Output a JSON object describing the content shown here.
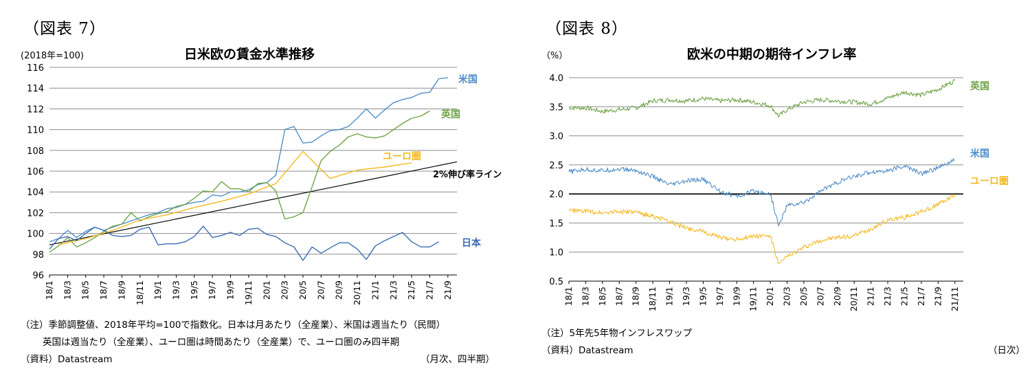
{
  "colors": {
    "us": "#4f8ec8",
    "uk": "#6ea347",
    "euro": "#f5b821",
    "japan": "#3a6db5",
    "trend": "#000000",
    "grid": "#8c8c8c"
  },
  "fig7": {
    "fig_label": "（図表 7）",
    "unit": "(2018年=100)",
    "title": "日米欧の賃金水準推移",
    "notes": [
      "（注）季節調整値、2018年平均=100で指数化。日本は月あたり（全産業）、米国は週当たり（民間）",
      "英国は週当たり（全産業）、ユーロ圏は時間あたり（全産業）で、ユーロ圏のみ四半期",
      "（資料）Datastream"
    ],
    "frequency": "（月次、四半期）",
    "chart_data": {
      "type": "line",
      "title": "日米欧の賃金水準推移",
      "ylabel": "(2018年=100)",
      "ylim": [
        96,
        116
      ],
      "yticks": [
        96,
        98,
        100,
        102,
        104,
        106,
        108,
        110,
        112,
        114,
        116
      ],
      "xticks": [
        "18/1",
        "18/3",
        "18/5",
        "18/7",
        "18/9",
        "18/11",
        "19/1",
        "19/3",
        "19/5",
        "19/7",
        "19/9",
        "19/11",
        "20/1",
        "20/3",
        "20/5",
        "20/7",
        "20/9",
        "20/11",
        "21/1",
        "21/3",
        "21/5",
        "21/7",
        "21/9"
      ],
      "grid": true,
      "series": [
        {
          "name": "米国",
          "key": "us",
          "months": [
            1,
            2,
            3,
            4,
            5,
            6,
            7,
            8,
            9,
            10,
            11,
            12,
            13,
            14,
            15,
            16,
            17,
            18,
            19,
            20,
            21,
            22,
            23,
            24,
            25,
            26,
            27,
            28,
            29,
            30,
            31,
            32,
            33,
            34,
            35,
            36,
            37,
            38,
            39,
            40,
            41,
            42,
            43,
            44,
            45
          ],
          "values": [
            99.2,
            99.5,
            100.3,
            99.6,
            100.2,
            100.6,
            100.3,
            100.6,
            100.9,
            101.2,
            101.5,
            101.8,
            102.0,
            102.4,
            102.5,
            102.8,
            103.0,
            103.1,
            103.7,
            103.6,
            104.0,
            104.0,
            104.2,
            104.7,
            104.9,
            105.6,
            110.0,
            110.3,
            108.7,
            108.8,
            109.4,
            109.9,
            110.0,
            110.3,
            111.1,
            112.0,
            111.1,
            111.9,
            112.6,
            112.9,
            113.1,
            113.5,
            113.6,
            114.9,
            115.0
          ]
        },
        {
          "name": "英国",
          "key": "uk",
          "months": [
            1,
            2,
            3,
            4,
            5,
            6,
            7,
            8,
            9,
            10,
            11,
            12,
            13,
            14,
            15,
            16,
            17,
            18,
            19,
            20,
            21,
            22,
            23,
            24,
            25,
            26,
            27,
            28,
            29,
            30,
            31,
            32,
            33,
            34,
            35,
            36,
            37,
            38,
            39,
            40,
            41,
            42,
            43
          ],
          "values": [
            98.2,
            98.8,
            99.6,
            98.7,
            99.1,
            99.6,
            100.2,
            100.7,
            100.9,
            102.0,
            101.2,
            101.6,
            101.9,
            102.1,
            102.6,
            102.8,
            103.4,
            104.1,
            104.0,
            105.0,
            104.3,
            104.3,
            104.0,
            104.8,
            104.9,
            104.1,
            101.4,
            101.6,
            102.0,
            104.5,
            107.0,
            107.9,
            108.5,
            109.3,
            109.6,
            109.3,
            109.2,
            109.4,
            110.0,
            110.6,
            111.1,
            111.3,
            111.8
          ]
        },
        {
          "name": "ユーロ圏",
          "key": "euro",
          "months": [
            2,
            5,
            8,
            11,
            14,
            17,
            20,
            23,
            26,
            29,
            32,
            35,
            38,
            41
          ],
          "values": [
            98.9,
            99.5,
            100.3,
            101.3,
            101.8,
            102.5,
            103.1,
            103.8,
            104.8,
            107.9,
            105.3,
            106.1,
            106.4,
            106.8
          ]
        },
        {
          "name": "日本",
          "key": "japan",
          "months": [
            1,
            2,
            3,
            4,
            5,
            6,
            7,
            8,
            9,
            10,
            11,
            12,
            13,
            14,
            15,
            16,
            17,
            18,
            19,
            20,
            21,
            22,
            23,
            24,
            25,
            26,
            27,
            28,
            29,
            30,
            31,
            32,
            33,
            34,
            35,
            36,
            37,
            38,
            39,
            40,
            41,
            42,
            43,
            44
          ],
          "values": [
            98.5,
            99.5,
            99.7,
            99.3,
            100.0,
            100.6,
            100.3,
            99.8,
            99.7,
            99.8,
            100.4,
            100.6,
            98.9,
            99.0,
            99.0,
            99.2,
            99.7,
            100.7,
            99.6,
            99.8,
            100.1,
            99.8,
            100.4,
            100.5,
            99.9,
            99.7,
            99.1,
            98.7,
            97.4,
            98.7,
            98.1,
            98.6,
            99.1,
            99.1,
            98.5,
            97.5,
            98.8,
            99.3,
            99.7,
            100.1,
            99.2,
            98.7,
            98.7,
            99.2
          ]
        }
      ],
      "trend": {
        "name": "2%伸び率ライン",
        "from": [
          1,
          98.9
        ],
        "to": [
          46,
          106.9
        ]
      }
    }
  },
  "fig8": {
    "fig_label": "（図表 8）",
    "unit": "（%）",
    "title": "欧米の中期の期待インフレ率",
    "notes": [
      "（注）5年先5年物インフレスワップ",
      "（資料）Datastream"
    ],
    "frequency": "（日次）",
    "chart_data": {
      "type": "line",
      "title": "欧米の中期の期待インフレ率",
      "ylabel": "（%）",
      "ylim": [
        0.5,
        4.0
      ],
      "yticks": [
        0.5,
        1.0,
        1.5,
        2.0,
        2.5,
        3.0,
        3.5,
        4.0
      ],
      "xticks": [
        "18/1",
        "18/3",
        "18/5",
        "18/7",
        "18/9",
        "18/11",
        "19/1",
        "19/3",
        "19/5",
        "19/7",
        "19/9",
        "19/11",
        "20/1",
        "20/3",
        "20/5",
        "20/7",
        "20/9",
        "20/11",
        "21/1",
        "21/3",
        "21/5",
        "21/7",
        "21/9",
        "21/11"
      ],
      "grid": true,
      "reference_line": 2.0,
      "series": [
        {
          "name": "英国",
          "key": "uk",
          "months": [
            1,
            3,
            5,
            7,
            9,
            11,
            13,
            15,
            17,
            19,
            21,
            23,
            25,
            26,
            27,
            29,
            31,
            33,
            35,
            37,
            39,
            41,
            43,
            45,
            47
          ],
          "values": [
            3.48,
            3.48,
            3.42,
            3.45,
            3.48,
            3.6,
            3.62,
            3.6,
            3.64,
            3.6,
            3.62,
            3.58,
            3.52,
            3.34,
            3.45,
            3.58,
            3.62,
            3.6,
            3.58,
            3.55,
            3.65,
            3.75,
            3.7,
            3.8,
            3.95
          ]
        },
        {
          "name": "米国",
          "key": "us",
          "months": [
            1,
            3,
            5,
            7,
            9,
            11,
            13,
            15,
            17,
            19,
            21,
            23,
            25,
            26,
            27,
            29,
            31,
            33,
            35,
            37,
            39,
            41,
            43,
            45,
            47
          ],
          "values": [
            2.38,
            2.42,
            2.4,
            2.43,
            2.4,
            2.3,
            2.15,
            2.22,
            2.25,
            2.05,
            1.95,
            2.05,
            2.0,
            1.45,
            1.8,
            1.85,
            2.05,
            2.2,
            2.3,
            2.38,
            2.4,
            2.48,
            2.35,
            2.45,
            2.58
          ]
        },
        {
          "name": "ユーロ圏",
          "key": "euro",
          "months": [
            1,
            3,
            5,
            7,
            9,
            11,
            13,
            15,
            17,
            19,
            21,
            23,
            25,
            26,
            27,
            29,
            31,
            33,
            35,
            37,
            39,
            41,
            43,
            45,
            47
          ],
          "values": [
            1.72,
            1.7,
            1.68,
            1.7,
            1.68,
            1.62,
            1.52,
            1.42,
            1.35,
            1.25,
            1.22,
            1.28,
            1.28,
            0.78,
            0.92,
            1.08,
            1.2,
            1.25,
            1.28,
            1.4,
            1.55,
            1.6,
            1.7,
            1.82,
            1.98
          ]
        }
      ]
    }
  }
}
